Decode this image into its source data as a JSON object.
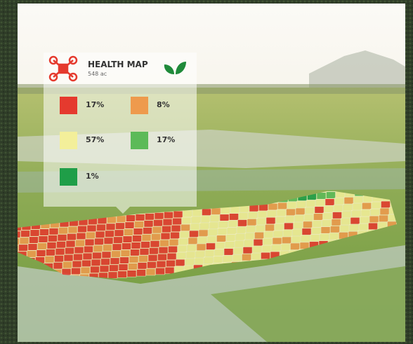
{
  "header": {
    "title": "HEALTH MAP",
    "subtitle": "548 ac"
  },
  "legend": {
    "items": [
      {
        "label": "17%",
        "color": "#e53a2e"
      },
      {
        "label": "8%",
        "color": "#ee9a4d"
      },
      {
        "label": "57%",
        "color": "#f3ef9a"
      },
      {
        "label": "17%",
        "color": "#5cba58"
      },
      {
        "label": "1%",
        "color": "#1f9e48"
      }
    ]
  }
}
